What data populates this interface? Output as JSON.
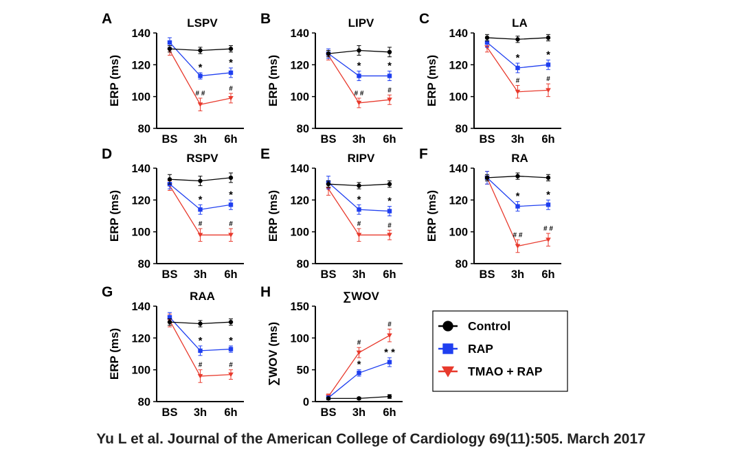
{
  "citation": "Yu L et al. Journal of the American College of Cardiology 69(11):505. March 2017",
  "colors": {
    "control": "#000000",
    "rap": "#1f3ff0",
    "tmao": "#e8392c"
  },
  "legend": {
    "entries": [
      {
        "label": "Control",
        "series": "control",
        "marker": "circle"
      },
      {
        "label": "RAP",
        "series": "rap",
        "marker": "square"
      },
      {
        "label": "TMAO + RAP",
        "series": "tmao",
        "marker": "triangle-down"
      }
    ]
  },
  "chart_data": [
    {
      "type": "line",
      "letter": "A",
      "title": "LSPV",
      "xlabel": "",
      "ylabel": "ERP (ms)",
      "categories": [
        "BS",
        "3h",
        "6h"
      ],
      "ylim": [
        80,
        140
      ],
      "yticks": [
        80,
        100,
        120,
        140
      ],
      "series": [
        {
          "name": "Control",
          "key": "control",
          "values": [
            130,
            129,
            130
          ],
          "errors": [
            2,
            2,
            2
          ],
          "annotations": [
            "",
            "",
            ""
          ]
        },
        {
          "name": "RAP",
          "key": "rap",
          "values": [
            134,
            113,
            115
          ],
          "errors": [
            3,
            2,
            3
          ],
          "annotations": [
            "",
            "*",
            "*"
          ]
        },
        {
          "name": "TMAO + RAP",
          "key": "tmao",
          "values": [
            129,
            95,
            99
          ],
          "errors": [
            3,
            4,
            3
          ],
          "annotations": [
            "",
            "# #",
            "#"
          ]
        }
      ]
    },
    {
      "type": "line",
      "letter": "B",
      "title": "LIPV",
      "xlabel": "",
      "ylabel": "ERP (ms)",
      "categories": [
        "BS",
        "3h",
        "6h"
      ],
      "ylim": [
        80,
        140
      ],
      "yticks": [
        80,
        100,
        120,
        140
      ],
      "series": [
        {
          "name": "Control",
          "key": "control",
          "values": [
            127,
            129,
            128
          ],
          "errors": [
            2,
            3,
            3
          ],
          "annotations": [
            "",
            "",
            ""
          ]
        },
        {
          "name": "RAP",
          "key": "rap",
          "values": [
            127,
            113,
            113
          ],
          "errors": [
            3,
            3,
            3
          ],
          "annotations": [
            "",
            "*",
            "*"
          ]
        },
        {
          "name": "TMAO + RAP",
          "key": "tmao",
          "values": [
            126,
            96,
            98
          ],
          "errors": [
            3,
            3,
            3
          ],
          "annotations": [
            "",
            "# #",
            "#"
          ]
        }
      ]
    },
    {
      "type": "line",
      "letter": "C",
      "title": "LA",
      "xlabel": "",
      "ylabel": "ERP (ms)",
      "categories": [
        "BS",
        "3h",
        "6h"
      ],
      "ylim": [
        80,
        140
      ],
      "yticks": [
        80,
        100,
        120,
        140
      ],
      "series": [
        {
          "name": "Control",
          "key": "control",
          "values": [
            137,
            136,
            137
          ],
          "errors": [
            2,
            2,
            2
          ],
          "annotations": [
            "",
            "",
            ""
          ]
        },
        {
          "name": "RAP",
          "key": "rap",
          "values": [
            134,
            118,
            120
          ],
          "errors": [
            3,
            3,
            3
          ],
          "annotations": [
            "",
            "*",
            "*"
          ]
        },
        {
          "name": "TMAO + RAP",
          "key": "tmao",
          "values": [
            131,
            103,
            104
          ],
          "errors": [
            3,
            4,
            4
          ],
          "annotations": [
            "",
            "#",
            "#"
          ]
        }
      ]
    },
    {
      "type": "line",
      "letter": "D",
      "title": "RSPV",
      "xlabel": "",
      "ylabel": "ERP (ms)",
      "categories": [
        "BS",
        "3h",
        "6h"
      ],
      "ylim": [
        80,
        140
      ],
      "yticks": [
        80,
        100,
        120,
        140
      ],
      "series": [
        {
          "name": "Control",
          "key": "control",
          "values": [
            133,
            132,
            134
          ],
          "errors": [
            3,
            3,
            3
          ],
          "annotations": [
            "",
            "",
            ""
          ]
        },
        {
          "name": "RAP",
          "key": "rap",
          "values": [
            130,
            114,
            117
          ],
          "errors": [
            3,
            3,
            3
          ],
          "annotations": [
            "",
            "*",
            "*"
          ]
        },
        {
          "name": "TMAO + RAP",
          "key": "tmao",
          "values": [
            129,
            98,
            98
          ],
          "errors": [
            3,
            4,
            4
          ],
          "annotations": [
            "",
            "#",
            "#"
          ]
        }
      ]
    },
    {
      "type": "line",
      "letter": "E",
      "title": "RIPV",
      "xlabel": "",
      "ylabel": "ERP (ms)",
      "categories": [
        "BS",
        "3h",
        "6h"
      ],
      "ylim": [
        80,
        140
      ],
      "yticks": [
        80,
        100,
        120,
        140
      ],
      "series": [
        {
          "name": "Control",
          "key": "control",
          "values": [
            130,
            129,
            130
          ],
          "errors": [
            2,
            2,
            2
          ],
          "annotations": [
            "",
            "",
            ""
          ]
        },
        {
          "name": "RAP",
          "key": "rap",
          "values": [
            131,
            114,
            113
          ],
          "errors": [
            4,
            3,
            3
          ],
          "annotations": [
            "",
            "*",
            "*"
          ]
        },
        {
          "name": "TMAO + RAP",
          "key": "tmao",
          "values": [
            127,
            98,
            98
          ],
          "errors": [
            4,
            4,
            3
          ],
          "annotations": [
            "",
            "#",
            "#"
          ]
        }
      ]
    },
    {
      "type": "line",
      "letter": "F",
      "title": "RA",
      "xlabel": "",
      "ylabel": "ERP (ms)",
      "categories": [
        "BS",
        "3h",
        "6h"
      ],
      "ylim": [
        80,
        140
      ],
      "yticks": [
        80,
        100,
        120,
        140
      ],
      "series": [
        {
          "name": "Control",
          "key": "control",
          "values": [
            134,
            135,
            134
          ],
          "errors": [
            2,
            2,
            2
          ],
          "annotations": [
            "",
            "",
            ""
          ]
        },
        {
          "name": "RAP",
          "key": "rap",
          "values": [
            134,
            116,
            117
          ],
          "errors": [
            4,
            3,
            3
          ],
          "annotations": [
            "",
            "*",
            "*"
          ]
        },
        {
          "name": "TMAO + RAP",
          "key": "tmao",
          "values": [
            134,
            91,
            95
          ],
          "errors": [
            4,
            4,
            4
          ],
          "annotations": [
            "",
            "# #",
            "# #"
          ]
        }
      ]
    },
    {
      "type": "line",
      "letter": "G",
      "title": "RAA",
      "xlabel": "",
      "ylabel": "ERP (ms)",
      "categories": [
        "BS",
        "3h",
        "6h"
      ],
      "ylim": [
        80,
        140
      ],
      "yticks": [
        80,
        100,
        120,
        140
      ],
      "series": [
        {
          "name": "Control",
          "key": "control",
          "values": [
            130,
            129,
            130
          ],
          "errors": [
            2,
            2,
            2
          ],
          "annotations": [
            "",
            "",
            ""
          ]
        },
        {
          "name": "RAP",
          "key": "rap",
          "values": [
            133,
            112,
            113
          ],
          "errors": [
            3,
            3,
            2
          ],
          "annotations": [
            "",
            "*",
            "*"
          ]
        },
        {
          "name": "TMAO + RAP",
          "key": "tmao",
          "values": [
            131,
            96,
            97
          ],
          "errors": [
            4,
            4,
            3
          ],
          "annotations": [
            "",
            "#",
            "#"
          ]
        }
      ]
    },
    {
      "type": "line",
      "letter": "H",
      "title": "∑WOV",
      "xlabel": "",
      "ylabel": "∑WOV (ms)",
      "categories": [
        "BS",
        "3h",
        "6h"
      ],
      "ylim": [
        0,
        150
      ],
      "yticks": [
        0,
        50,
        100,
        150
      ],
      "series": [
        {
          "name": "Control",
          "key": "control",
          "values": [
            5,
            5,
            8
          ],
          "errors": [
            2,
            2,
            3
          ],
          "annotations": [
            "",
            "",
            ""
          ]
        },
        {
          "name": "RAP",
          "key": "rap",
          "values": [
            6,
            45,
            62
          ],
          "errors": [
            3,
            5,
            7
          ],
          "annotations": [
            "",
            "*",
            "* *"
          ]
        },
        {
          "name": "TMAO + RAP",
          "key": "tmao",
          "values": [
            8,
            77,
            104
          ],
          "errors": [
            4,
            8,
            10
          ],
          "annotations": [
            "",
            "#",
            "#"
          ]
        }
      ]
    }
  ]
}
